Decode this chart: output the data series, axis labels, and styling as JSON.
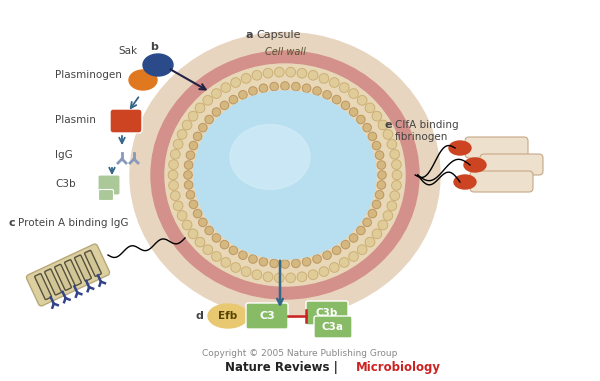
{
  "fig_bg": "#ffffff",
  "capsule_color": "#e8d5bf",
  "cell_wall_color": "#d4908a",
  "peptido_bg_color": "#e8d8b8",
  "peptido_dot_color": "#e0cc98",
  "peptido_dot_edge": "#c8a870",
  "inner_membrane_color": "#d4b880",
  "inner_membrane_edge": "#b89060",
  "cytoplasm_color": "#b8dff0",
  "cytoplasm_highlight": "#d8eef8",
  "sak_color": "#2a4a8a",
  "plasminogen_color": "#e07820",
  "plasmin_color": "#cc4422",
  "igg_color": "#8899bb",
  "c3b_color": "#aac898",
  "protein_a_color": "#ddd0a0",
  "protein_a_edge": "#b8a878",
  "protein_a_igg_color": "#334488",
  "fibrinogen_tube_color": "#ede0cc",
  "fibrinogen_tube_edge": "#c8a888",
  "fibrinogen_knob_color": "#cc4422",
  "efb_color": "#e8c870",
  "efb_edge": "#c8a840",
  "c3_color": "#88bb66",
  "c3b_box_color": "#88bb66",
  "c3a_box_color": "#88bb66",
  "arrow_color": "#336688",
  "inhibit_color": "#cc2222",
  "label_color": "#444444",
  "microbiology_color": "#cc2222",
  "copyright_text": "Copyright © 2005 Nature Publishing Group",
  "cell_wall_label": "Cell wall",
  "capsule_label": "Capsule"
}
